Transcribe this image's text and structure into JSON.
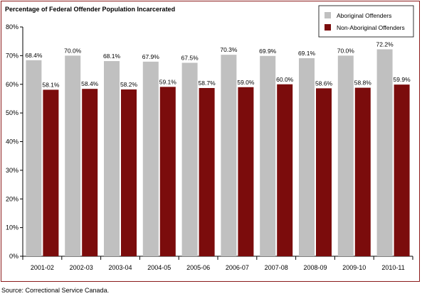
{
  "chart_data": {
    "type": "bar",
    "title": "Percentage of Federal Offender Population Incarcerated",
    "categories": [
      "2001-02",
      "2002-03",
      "2003-04",
      "2004-05",
      "2005-06",
      "2006-07",
      "2007-08",
      "2008-09",
      "2009-10",
      "2010-11"
    ],
    "series": [
      {
        "name": "Aboriginal Offenders",
        "color": "#c0c0c0",
        "values": [
          68.4,
          70.0,
          68.1,
          67.9,
          67.5,
          70.3,
          69.9,
          69.1,
          70.0,
          72.2
        ],
        "labels": [
          "68.4%",
          "70.0%",
          "68.1%",
          "67.9%",
          "67.5%",
          "70.3%",
          "69.9%",
          "69.1%",
          "70.0%",
          "72.2%"
        ]
      },
      {
        "name": "Non-Aboriginal Offenders",
        "color": "#7b0c0c",
        "values": [
          58.1,
          58.4,
          58.2,
          59.1,
          58.7,
          59.0,
          60.0,
          58.6,
          58.8,
          59.9
        ],
        "labels": [
          "58.1%",
          "58.4%",
          "58.2%",
          "59.1%",
          "58.7%",
          "59.0%",
          "60.0%",
          "58.6%",
          "58.8%",
          "59.9%"
        ]
      }
    ],
    "ylim": [
      0,
      80
    ],
    "yticks": [
      "0%",
      "10%",
      "20%",
      "30%",
      "40%",
      "50%",
      "60%",
      "70%",
      "80%"
    ],
    "ytick_values": [
      0,
      10,
      20,
      30,
      40,
      50,
      60,
      70,
      80
    ],
    "grid": false,
    "legend": "top-right",
    "border_color": "#8b1a1a"
  },
  "source": "Source:  Correctional Service Canada."
}
